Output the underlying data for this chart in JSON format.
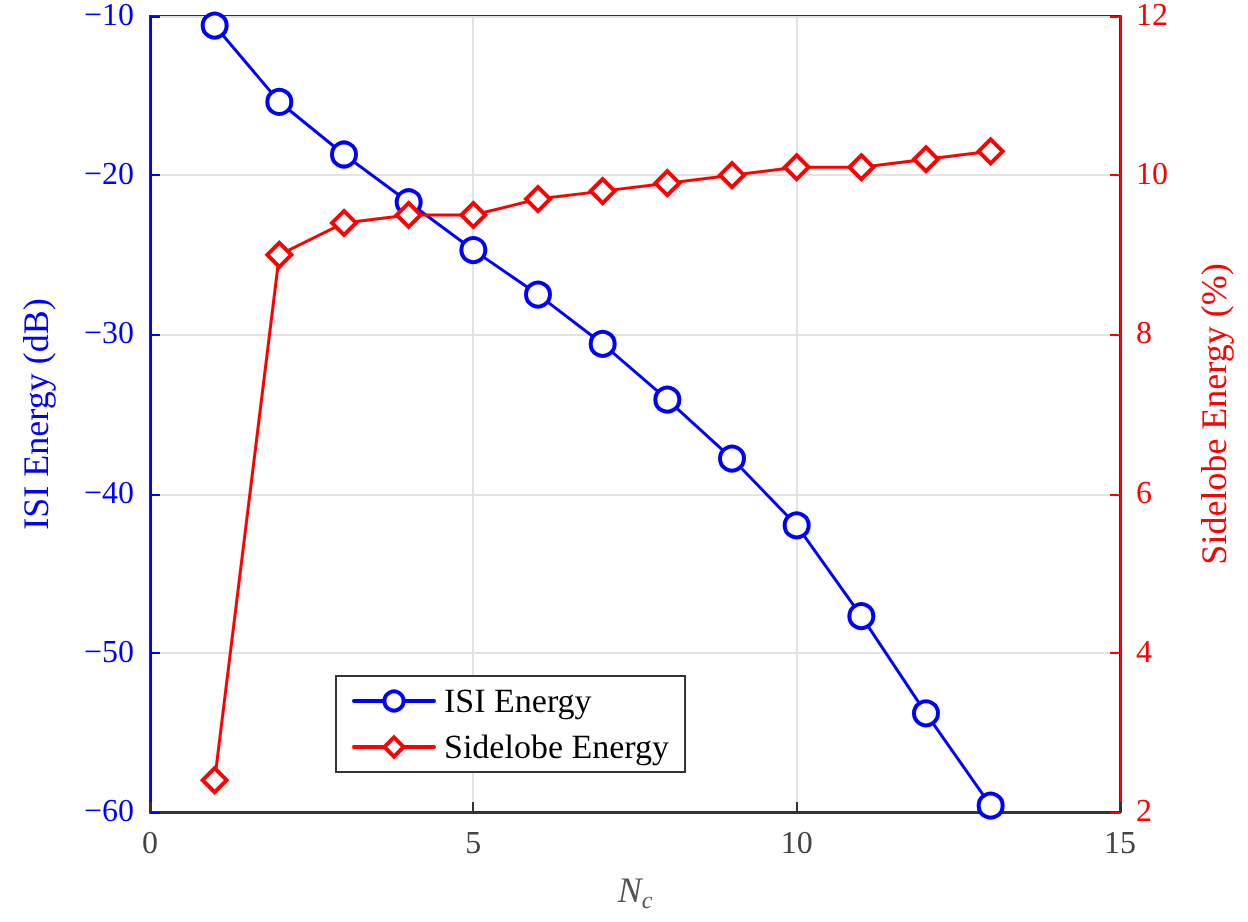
{
  "chart_data": {
    "type": "line",
    "xlabel": "N$_{c}$",
    "ylabel": "ISI Energy (dB)",
    "y2label": "Sidelobe Energy (%)",
    "x": [
      1,
      2,
      3,
      4,
      5,
      6,
      7,
      8,
      9,
      10,
      11,
      12,
      13
    ],
    "series": [
      {
        "name": "ISI Energy",
        "color": "#0000ff",
        "marker": "circle",
        "values": [
          -10.6,
          -15.4,
          -18.7,
          -21.7,
          -24.7,
          -27.5,
          -30.6,
          -34.1,
          -37.8,
          -42.0,
          -47.7,
          -53.8,
          -59.6
        ]
      },
      {
        "name": "Sidelobe Energy",
        "color": "#ff0000",
        "marker": "diamond",
        "axis": "y2",
        "values": [
          2.4,
          9.0,
          9.4,
          9.5,
          9.5,
          9.7,
          9.8,
          9.9,
          10.0,
          10.1,
          10.1,
          10.2,
          10.3
        ]
      }
    ],
    "xlim": [
      0,
      15
    ],
    "xticks": [
      0,
      5,
      10,
      15
    ],
    "ylim": [
      -60,
      -10
    ],
    "yticks": [
      -60,
      -50,
      -40,
      -30,
      -20,
      -10
    ],
    "y2lim": [
      2,
      12
    ],
    "y2ticks": [
      2,
      4,
      6,
      8,
      10,
      12
    ],
    "grid": true,
    "legend": "bottom left",
    "line_style": "solid"
  }
}
